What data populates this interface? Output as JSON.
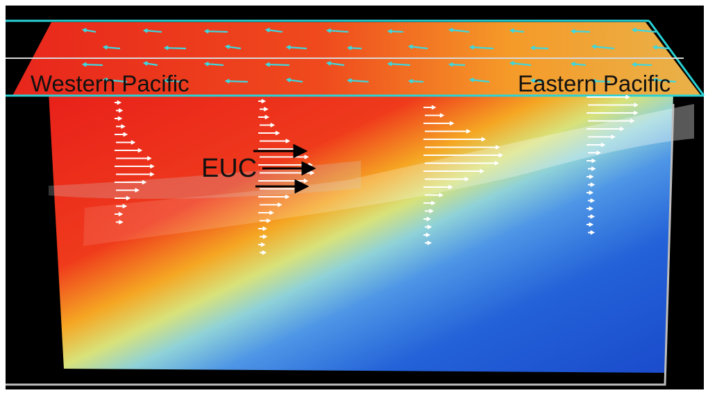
{
  "labels": {
    "western": "Western Pacific",
    "eastern": "Eastern Pacific",
    "euc": "EUC"
  },
  "colors": {
    "background": "#000000",
    "warm": "#e0241a",
    "cool": "#1a5ad6",
    "frame": "#29d3d6",
    "current_arrows": "#ffffff",
    "surface_arrows": "#3fd6dc",
    "euc_arrows": "#000000"
  },
  "icons": [
    "euc-arrow-icon"
  ]
}
